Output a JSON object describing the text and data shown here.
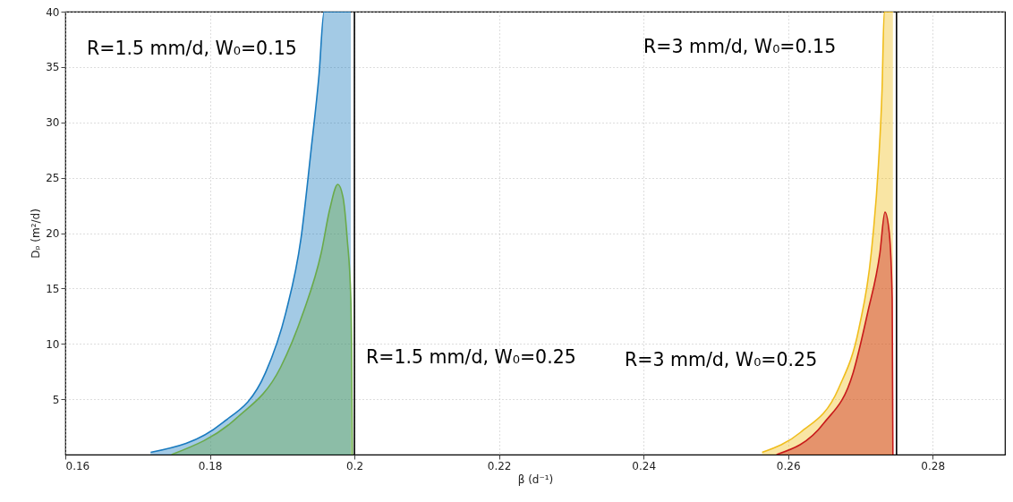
{
  "chart_data": {
    "type": "area",
    "xlabel": "β (d⁻¹)",
    "ylabel": "Dₚ (m²/d)",
    "xlim": [
      0.16,
      0.29
    ],
    "xticks": [
      0.16,
      0.18,
      {
        "value": 0.2,
        "label": "0.2"
      },
      0.22,
      0.24,
      0.26,
      0.28
    ],
    "ylim": [
      0,
      40
    ],
    "yticks": [
      5,
      10,
      15,
      20,
      25,
      30,
      35,
      40
    ],
    "grid": true,
    "series": [
      {
        "color": "#1a7bbf",
        "x": [
          0.1718,
          0.1816,
          0.1877,
          0.1905,
          0.1926,
          0.194,
          0.1951,
          0.1958,
          0.1995
        ],
        "values": [
          0.2,
          2.8,
          7.4,
          12.8,
          19.5,
          27.5,
          34.3,
          40,
          40
        ]
      },
      {
        "color": "#6aaa4a",
        "x": [
          0.1747,
          0.1837,
          0.1898,
          0.1929,
          0.1954,
          0.1966,
          0.1977,
          0.1984,
          0.199,
          0.1995,
          0.1996,
          0.1997
        ],
        "values": [
          0,
          3.3,
          7.9,
          12.8,
          18.2,
          22.2,
          24.4,
          23.3,
          19.5,
          14.1,
          10,
          0
        ]
      },
      {
        "color": "#f0bd1c",
        "x": [
          0.2564,
          0.2617,
          0.267,
          0.2698,
          0.2715,
          0.2725,
          0.273,
          0.2733,
          0.2745
        ],
        "values": [
          0.2,
          2,
          6,
          11.4,
          18.2,
          26.2,
          33,
          40,
          40
        ]
      },
      {
        "color": "#c81a1a",
        "x": [
          0.2584,
          0.2649,
          0.269,
          0.271,
          0.2727,
          0.2734,
          0.274,
          0.2744,
          0.2745
        ],
        "values": [
          0,
          2.8,
          7.4,
          12.8,
          18.2,
          21.9,
          20,
          14.1,
          0
        ]
      }
    ],
    "ref_lines": [
      {
        "axis": "x",
        "value": 0.2,
        "color": "#000000"
      },
      {
        "axis": "x",
        "value": 0.275,
        "color": "#000000"
      }
    ],
    "annotations": [
      "R=1.5 mm/d, W₀=0.15",
      "R=1.5 mm/d, W₀=0.25",
      "R=3 mm/d, W₀=0.15",
      "R=3 mm/d, W₀=0.25"
    ]
  }
}
